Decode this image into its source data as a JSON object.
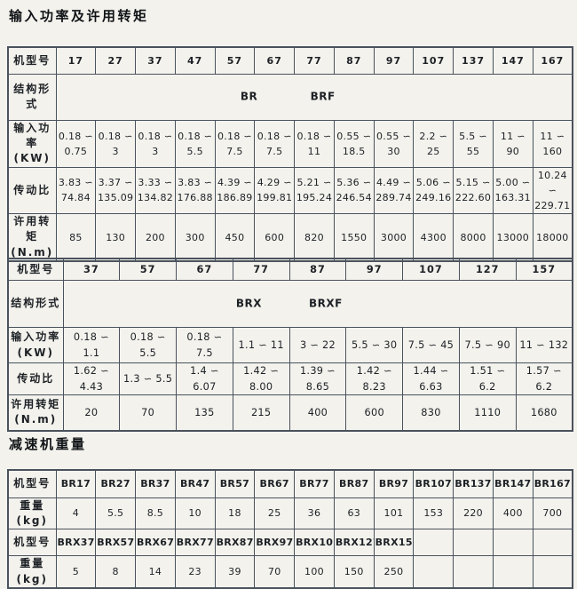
{
  "sections": {
    "power_torque": {
      "title": "输入功率及许用转矩"
    },
    "weight": {
      "title": "减速机重量"
    }
  },
  "labels": {
    "model": "机型号",
    "structure": "结构形式",
    "input_power": "输入功率\n(KW)",
    "ratio": "传动比",
    "torque": "许用转矩\n(N.m)",
    "weight": "重量(kg)"
  },
  "table_br": {
    "models": [
      "17",
      "27",
      "37",
      "47",
      "57",
      "67",
      "77",
      "87",
      "97",
      "107",
      "137",
      "147",
      "167"
    ],
    "structures": [
      "BR",
      "BRF"
    ],
    "input_power_kw": [
      "0.18 ∽\n0.75",
      "0.18 ∽\n3",
      "0.18 ∽\n3",
      "0.18 ∽\n5.5",
      "0.18 ∽\n7.5",
      "0.18 ∽\n7.5",
      "0.18 ∽\n11",
      "0.55 ∽\n18.5",
      "0.55 ∽\n30",
      "2.2 ∽\n25",
      "5.5 ∽\n55",
      "11 ∽\n90",
      "11 ∽\n160"
    ],
    "ratio": [
      "3.83 ∽\n74.84",
      "3.37 ∽\n135.09",
      "3.33 ∽\n134.82",
      "3.83 ∽\n176.88",
      "4.39 ∽\n186.89",
      "4.29 ∽\n199.81",
      "5.21 ∽\n195.24",
      "5.36 ∽\n246.54",
      "4.49 ∽\n289.74",
      "5.06 ∽\n249.16",
      "5.15 ∽\n222.60",
      "5.00 ∽\n163.31",
      "10.24 ∽\n229.71"
    ],
    "torque_nm": [
      "85",
      "130",
      "200",
      "300",
      "450",
      "600",
      "820",
      "1550",
      "3000",
      "4300",
      "8000",
      "13000",
      "18000"
    ]
  },
  "table_brx": {
    "models": [
      "37",
      "57",
      "67",
      "77",
      "87",
      "97",
      "107",
      "127",
      "157"
    ],
    "structures": [
      "BRX",
      "BRXF"
    ],
    "input_power_kw": [
      "0.18 ∽ 1.1",
      "0.18 ∽ 5.5",
      "0.18 ∽ 7.5",
      "1.1 ∽ 11",
      "3 ∽ 22",
      "5.5 ∽ 30",
      "7.5 ∽ 45",
      "7.5 ∽ 90",
      "11 ∽ 132"
    ],
    "ratio": [
      "1.62 ∽ 4.43",
      "1.3 ∽ 5.5",
      "1.4 ∽ 6.07",
      "1.42 ∽ 8.00",
      "1.39 ∽ 8.65",
      "1.42 ∽ 8.23",
      "1.44 ∽ 6.63",
      "1.51 ∽ 6.2",
      "1.57 ∽ 6.2"
    ],
    "torque_nm": [
      "20",
      "70",
      "135",
      "215",
      "400",
      "600",
      "830",
      "1110",
      "1680"
    ]
  },
  "table_weight": {
    "br_models": [
      "BR17",
      "BR27",
      "BR37",
      "BR47",
      "BR57",
      "BR67",
      "BR77",
      "BR87",
      "BR97",
      "BR107",
      "BR137",
      "BR147",
      "BR167"
    ],
    "br_weights_kg": [
      "4",
      "5.5",
      "8.5",
      "10",
      "18",
      "25",
      "36",
      "63",
      "101",
      "153",
      "220",
      "400",
      "700"
    ],
    "brx_models": [
      "BRX37",
      "BRX57",
      "BRX67",
      "BRX77",
      "BRX87",
      "BRX97",
      "BRX107",
      "BRX127",
      "BRX157",
      "",
      "",
      "",
      ""
    ],
    "brx_weights_kg": [
      "5",
      "8",
      "14",
      "23",
      "39",
      "70",
      "100",
      "150",
      "250",
      "",
      "",
      "",
      ""
    ]
  },
  "colors": {
    "page_background": "#f3f2ed",
    "table_line": "#4a525c",
    "text": "#1d2125"
  }
}
